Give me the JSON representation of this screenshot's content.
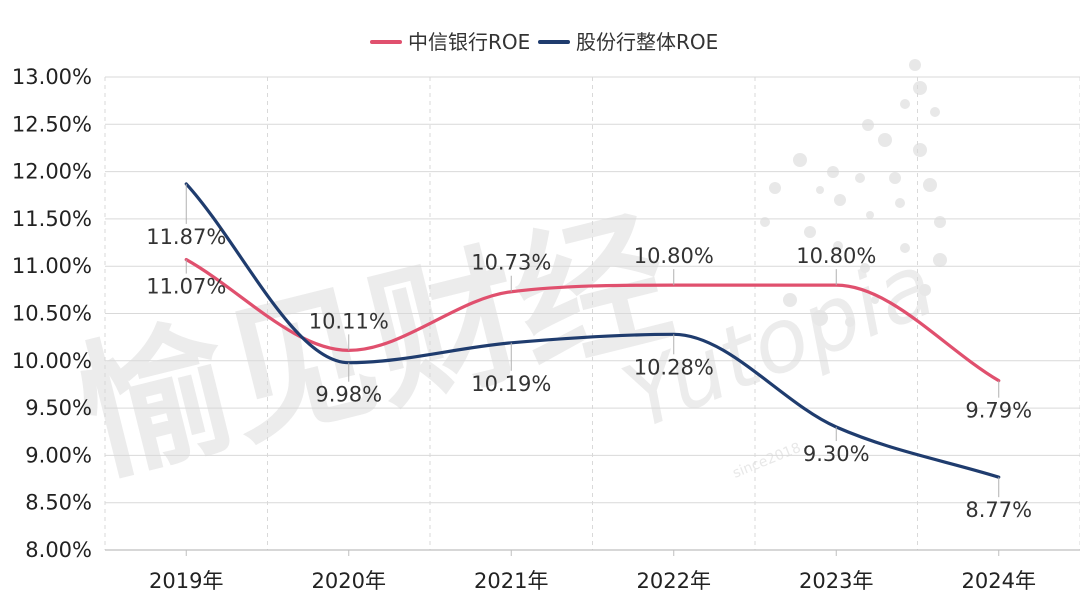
{
  "chart_data": {
    "type": "line",
    "categories": [
      "2019年",
      "2020年",
      "2021年",
      "2022年",
      "2023年",
      "2024年"
    ],
    "series": [
      {
        "name": "中信银行ROE",
        "color": "#e0506e",
        "values": [
          11.07,
          10.11,
          10.73,
          10.8,
          10.8,
          9.79
        ],
        "labels": [
          "11.07%",
          "10.11%",
          "10.73%",
          "10.80%",
          "10.80%",
          "9.79%"
        ]
      },
      {
        "name": "股份行整体ROE",
        "color": "#1f3c6e",
        "values": [
          11.87,
          9.98,
          10.19,
          10.28,
          9.3,
          8.77
        ],
        "labels": [
          "11.87%",
          "9.98%",
          "10.19%",
          "10.28%",
          "9.30%",
          "8.77%"
        ]
      }
    ],
    "ylim": [
      8.0,
      13.0
    ],
    "y_ticks": [
      "8.00%",
      "8.50%",
      "9.00%",
      "9.50%",
      "10.00%",
      "10.50%",
      "11.00%",
      "11.50%",
      "12.00%",
      "12.50%",
      "13.00%"
    ],
    "grid": true,
    "legend": "top-center",
    "smooth": true
  },
  "watermark": {
    "text": "愉见财经",
    "sub": "Yutopia",
    "tiny": "since2018"
  }
}
